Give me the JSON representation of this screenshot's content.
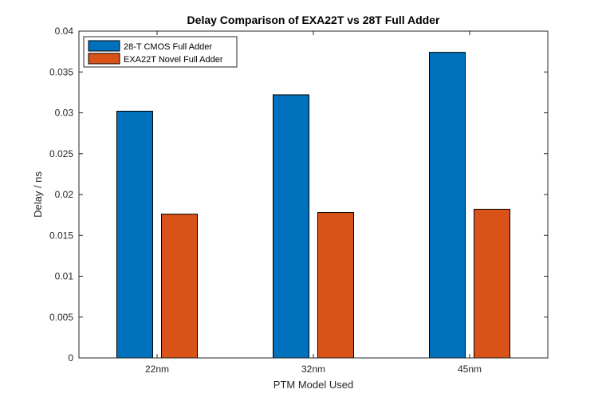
{
  "chart_data": {
    "type": "bar",
    "title": "Delay Comparison of EXA22T vs 28T Full Adder",
    "xlabel": "PTM Model Used",
    "ylabel": "Delay / ns",
    "categories": [
      "22nm",
      "32nm",
      "45nm"
    ],
    "ylim": [
      0,
      0.04
    ],
    "yticks": [
      0,
      0.005,
      0.01,
      0.015,
      0.02,
      0.025,
      0.03,
      0.035,
      0.04
    ],
    "ytick_labels": [
      "0",
      "0.005",
      "0.01",
      "0.015",
      "0.02",
      "0.025",
      "0.03",
      "0.035",
      "0.04"
    ],
    "grid": false,
    "legend_position": "top-left",
    "series": [
      {
        "name": "28-T CMOS Full Adder",
        "values": [
          0.0302,
          0.0322,
          0.0374
        ],
        "color": "#0072BD"
      },
      {
        "name": "EXA22T Novel Full Adder",
        "values": [
          0.0176,
          0.0178,
          0.0182
        ],
        "color": "#D95319"
      }
    ]
  }
}
